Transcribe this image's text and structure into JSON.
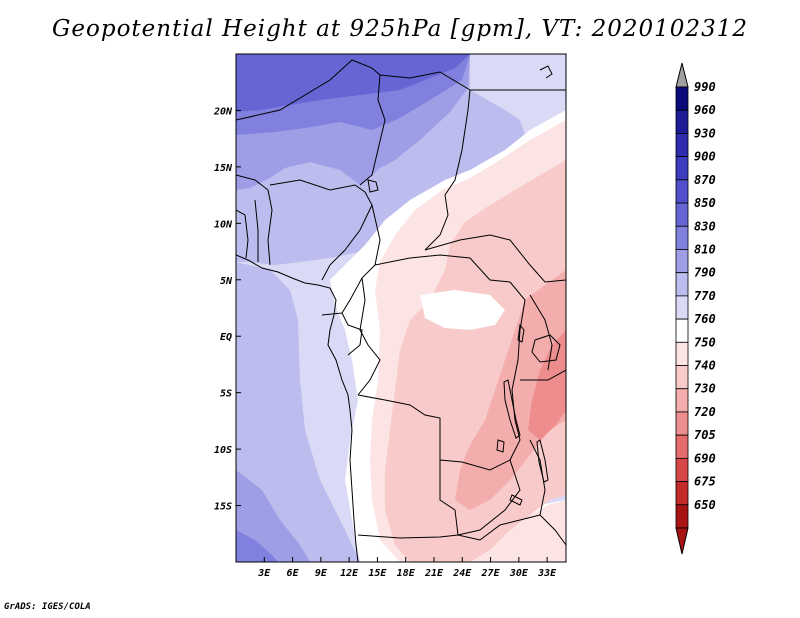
{
  "title": "Geopotential Height at 925hPa [gpm], VT: 2020102312",
  "credit": "GrADS: IGES/COLA",
  "map": {
    "lon_range": [
      0,
      35
    ],
    "lat_range": [
      -20,
      25
    ],
    "lat_ticks": [
      {
        "value": 20,
        "label": "20N"
      },
      {
        "value": 15,
        "label": "15N"
      },
      {
        "value": 10,
        "label": "10N"
      },
      {
        "value": 5,
        "label": "5N"
      },
      {
        "value": 0,
        "label": "EQ"
      },
      {
        "value": -5,
        "label": "5S"
      },
      {
        "value": -10,
        "label": "10S"
      },
      {
        "value": -15,
        "label": "15S"
      }
    ],
    "lon_ticks": [
      {
        "value": 3,
        "label": "3E"
      },
      {
        "value": 6,
        "label": "6E"
      },
      {
        "value": 9,
        "label": "9E"
      },
      {
        "value": 12,
        "label": "12E"
      },
      {
        "value": 15,
        "label": "15E"
      },
      {
        "value": 18,
        "label": "18E"
      },
      {
        "value": 21,
        "label": "21E"
      },
      {
        "value": 24,
        "label": "24E"
      },
      {
        "value": 27,
        "label": "27E"
      },
      {
        "value": 30,
        "label": "30E"
      },
      {
        "value": 33,
        "label": "33E"
      }
    ]
  },
  "legend": {
    "levels": [
      "990",
      "960",
      "930",
      "900",
      "870",
      "850",
      "830",
      "810",
      "790",
      "770",
      "760",
      "750",
      "740",
      "730",
      "720",
      "705",
      "690",
      "675",
      "650"
    ],
    "colors": [
      "#0a0a78",
      "#1c1c96",
      "#2c2cad",
      "#3d3dc0",
      "#5050cc",
      "#6565d4",
      "#8080de",
      "#9e9ee6",
      "#bcbcee",
      "#dadaf6",
      "#ffffff",
      "#fde4e4",
      "#f9caca",
      "#f4adad",
      "#ee8d8d",
      "#e66b6b",
      "#d84747",
      "#c42a2a",
      "#a81414"
    ],
    "top_arrow_color": "#a0a0a0",
    "bottom_arrow_color": "#a81414"
  }
}
